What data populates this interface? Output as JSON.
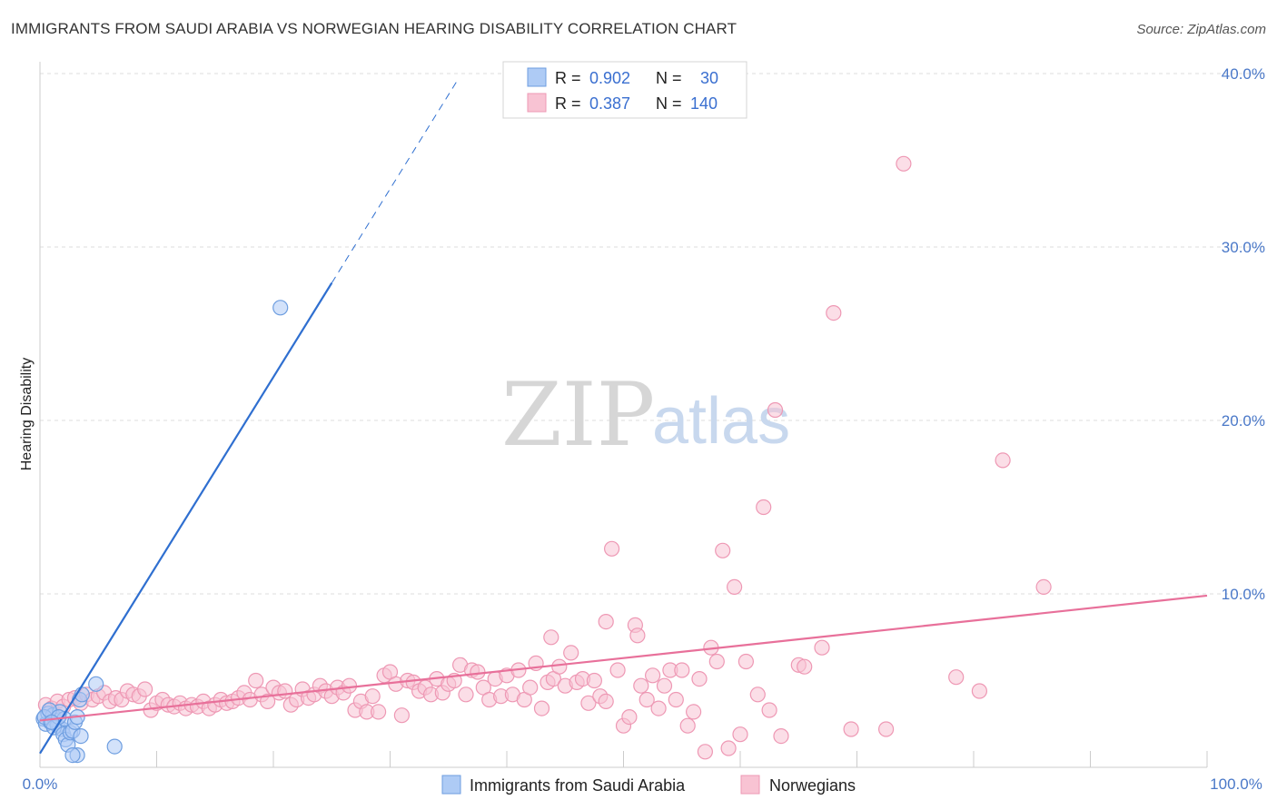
{
  "title": "IMMIGRANTS FROM SAUDI ARABIA VS NORWEGIAN HEARING DISABILITY CORRELATION CHART",
  "source": "Source: ZipAtlas.com",
  "watermark": {
    "zip": "ZIP",
    "atlas": "atlas"
  },
  "colors": {
    "blue_fill": "#aecbf5",
    "blue_stroke": "#6e9ee0",
    "blue_line": "#2f6fd0",
    "pink_fill": "#f8c3d3",
    "pink_stroke": "#ee98b4",
    "pink_line": "#e8709a",
    "accent_text": "#3a6fd0"
  },
  "legend": {
    "r_label": "R =",
    "n_label": "N =",
    "rows": [
      {
        "series": "blue",
        "r": "0.902",
        "n": "30"
      },
      {
        "series": "pink",
        "r": "0.387",
        "n": "140"
      }
    ]
  },
  "chart_data": {
    "type": "scatter",
    "ylabel": "Hearing Disability",
    "xlabel": "",
    "x_tick_labels": [
      "0.0%",
      "100.0%"
    ],
    "y_tick_labels": [
      "10.0%",
      "20.0%",
      "30.0%",
      "40.0%"
    ],
    "y_ticks": [
      10,
      20,
      30,
      40
    ],
    "xlim": [
      0,
      100
    ],
    "ylim": [
      0,
      41
    ],
    "series": [
      {
        "name": "Immigrants from Saudi Arabia",
        "color": "blue",
        "trend": {
          "slope": 1.085,
          "intercept": 0.8,
          "solid_to_x": 25.0,
          "dashed_to_x": 35.7
        },
        "points": [
          [
            0.3,
            2.8
          ],
          [
            0.5,
            2.5
          ],
          [
            0.7,
            3.1
          ],
          [
            0.9,
            2.6
          ],
          [
            1.1,
            3.0
          ],
          [
            1.3,
            2.7
          ],
          [
            1.5,
            2.4
          ],
          [
            1.7,
            3.2
          ],
          [
            1.9,
            2.2
          ],
          [
            2.1,
            2.8
          ],
          [
            0.4,
            2.9
          ],
          [
            0.8,
            3.3
          ],
          [
            1.2,
            2.3
          ],
          [
            1.6,
            2.9
          ],
          [
            2.0,
            1.9
          ],
          [
            2.2,
            1.6
          ],
          [
            2.4,
            1.3
          ],
          [
            2.6,
            2.0
          ],
          [
            2.8,
            2.1
          ],
          [
            3.0,
            2.6
          ],
          [
            3.2,
            2.9
          ],
          [
            3.4,
            3.9
          ],
          [
            3.2,
            0.7
          ],
          [
            2.8,
            0.7
          ],
          [
            3.6,
            4.2
          ],
          [
            4.8,
            4.8
          ],
          [
            3.5,
            1.8
          ],
          [
            6.4,
            1.2
          ],
          [
            20.6,
            26.5
          ],
          [
            1.0,
            2.6
          ]
        ]
      },
      {
        "name": "Norwegians",
        "color": "pink",
        "trend": {
          "slope": 0.072,
          "intercept": 2.7,
          "solid_to_x": 100.0
        },
        "points": [
          [
            0.5,
            3.6
          ],
          [
            1.0,
            3.4
          ],
          [
            1.5,
            3.8
          ],
          [
            2.0,
            3.5
          ],
          [
            2.5,
            3.9
          ],
          [
            3.0,
            4.0
          ],
          [
            3.5,
            3.7
          ],
          [
            4.0,
            4.2
          ],
          [
            4.5,
            3.9
          ],
          [
            5.0,
            4.1
          ],
          [
            5.5,
            4.3
          ],
          [
            6.0,
            3.8
          ],
          [
            6.5,
            4.0
          ],
          [
            7.0,
            3.9
          ],
          [
            7.5,
            4.4
          ],
          [
            8.0,
            4.2
          ],
          [
            8.5,
            4.1
          ],
          [
            9.0,
            4.5
          ],
          [
            9.5,
            3.3
          ],
          [
            10.0,
            3.7
          ],
          [
            10.5,
            3.9
          ],
          [
            11.0,
            3.6
          ],
          [
            11.5,
            3.5
          ],
          [
            12.0,
            3.7
          ],
          [
            12.5,
            3.4
          ],
          [
            13.0,
            3.6
          ],
          [
            13.5,
            3.5
          ],
          [
            14.0,
            3.8
          ],
          [
            14.5,
            3.4
          ],
          [
            15.0,
            3.6
          ],
          [
            15.5,
            3.9
          ],
          [
            16.0,
            3.7
          ],
          [
            16.5,
            3.8
          ],
          [
            17.0,
            4.0
          ],
          [
            17.5,
            4.3
          ],
          [
            18.0,
            3.9
          ],
          [
            18.5,
            5.0
          ],
          [
            19.0,
            4.2
          ],
          [
            19.5,
            3.8
          ],
          [
            20.0,
            4.6
          ],
          [
            20.5,
            4.3
          ],
          [
            21.0,
            4.4
          ],
          [
            21.5,
            3.6
          ],
          [
            22.0,
            3.9
          ],
          [
            22.5,
            4.5
          ],
          [
            23.0,
            4.0
          ],
          [
            23.5,
            4.2
          ],
          [
            24.0,
            4.7
          ],
          [
            24.5,
            4.4
          ],
          [
            25.0,
            4.1
          ],
          [
            25.5,
            4.6
          ],
          [
            26.0,
            4.3
          ],
          [
            26.5,
            4.7
          ],
          [
            27.0,
            3.3
          ],
          [
            27.5,
            3.8
          ],
          [
            28.0,
            3.2
          ],
          [
            28.5,
            4.1
          ],
          [
            29.0,
            3.2
          ],
          [
            29.5,
            5.3
          ],
          [
            30.0,
            5.5
          ],
          [
            30.5,
            4.8
          ],
          [
            31.0,
            3.0
          ],
          [
            31.5,
            5.0
          ],
          [
            32.0,
            4.9
          ],
          [
            32.5,
            4.4
          ],
          [
            33.0,
            4.6
          ],
          [
            33.5,
            4.2
          ],
          [
            34.0,
            5.1
          ],
          [
            34.5,
            4.3
          ],
          [
            35.0,
            4.8
          ],
          [
            35.5,
            5.0
          ],
          [
            36.0,
            5.9
          ],
          [
            36.5,
            4.2
          ],
          [
            37.0,
            5.6
          ],
          [
            37.5,
            5.5
          ],
          [
            38.0,
            4.6
          ],
          [
            38.5,
            3.9
          ],
          [
            39.0,
            5.1
          ],
          [
            39.5,
            4.1
          ],
          [
            40.0,
            5.3
          ],
          [
            40.5,
            4.2
          ],
          [
            41.0,
            5.6
          ],
          [
            41.5,
            3.9
          ],
          [
            42.0,
            4.6
          ],
          [
            42.5,
            6.0
          ],
          [
            43.0,
            3.4
          ],
          [
            43.5,
            4.9
          ],
          [
            44.0,
            5.1
          ],
          [
            44.5,
            5.8
          ],
          [
            45.0,
            4.7
          ],
          [
            45.5,
            6.6
          ],
          [
            46.0,
            4.9
          ],
          [
            46.5,
            5.1
          ],
          [
            47.0,
            3.7
          ],
          [
            47.5,
            5.0
          ],
          [
            48.0,
            4.1
          ],
          [
            48.5,
            3.8
          ],
          [
            49.0,
            12.6
          ],
          [
            49.5,
            5.6
          ],
          [
            50.0,
            2.4
          ],
          [
            50.5,
            2.9
          ],
          [
            51.0,
            8.2
          ],
          [
            51.5,
            4.7
          ],
          [
            52.0,
            3.9
          ],
          [
            52.5,
            5.3
          ],
          [
            53.0,
            3.4
          ],
          [
            53.5,
            4.7
          ],
          [
            54.0,
            5.6
          ],
          [
            54.5,
            3.9
          ],
          [
            55.0,
            5.6
          ],
          [
            55.5,
            2.4
          ],
          [
            56.0,
            3.2
          ],
          [
            56.5,
            5.1
          ],
          [
            57.0,
            0.9
          ],
          [
            57.5,
            6.9
          ],
          [
            58.0,
            6.1
          ],
          [
            58.5,
            12.5
          ],
          [
            59.0,
            1.1
          ],
          [
            59.5,
            10.4
          ],
          [
            60.0,
            1.9
          ],
          [
            60.5,
            6.1
          ],
          [
            61.5,
            4.2
          ],
          [
            62.0,
            15.0
          ],
          [
            62.5,
            3.3
          ],
          [
            63.0,
            20.6
          ],
          [
            63.5,
            1.8
          ],
          [
            65.0,
            5.9
          ],
          [
            65.5,
            5.8
          ],
          [
            67.0,
            6.9
          ],
          [
            68.0,
            26.2
          ],
          [
            69.5,
            2.2
          ],
          [
            72.5,
            2.2
          ],
          [
            74.0,
            34.8
          ],
          [
            78.5,
            5.2
          ],
          [
            80.5,
            4.4
          ],
          [
            82.5,
            17.7
          ],
          [
            86.0,
            10.4
          ],
          [
            43.8,
            7.5
          ],
          [
            48.5,
            8.4
          ],
          [
            51.2,
            7.6
          ]
        ]
      }
    ]
  }
}
